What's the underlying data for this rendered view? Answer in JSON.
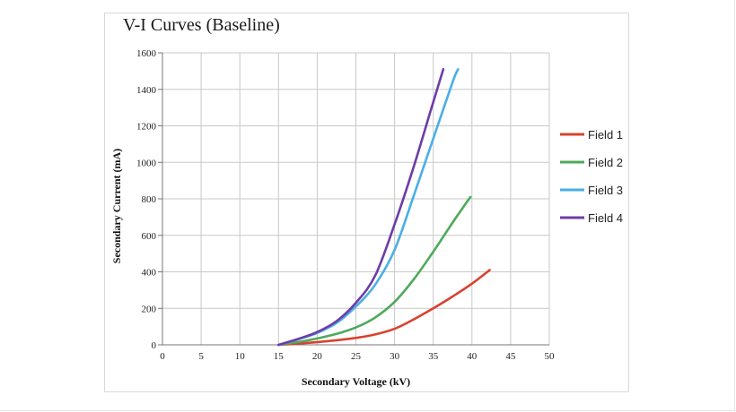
{
  "chart_data": {
    "type": "line",
    "title": "V-I Curves (Baseline)",
    "xlabel": "Secondary Voltage (kV)",
    "ylabel": "Secondary Current (mA)",
    "xlim": [
      0,
      50
    ],
    "ylim": [
      0,
      1600
    ],
    "xticks": [
      0,
      5,
      10,
      15,
      20,
      25,
      30,
      35,
      40,
      45,
      50
    ],
    "yticks": [
      0,
      200,
      400,
      600,
      800,
      1000,
      1200,
      1400,
      1600
    ],
    "grid": true,
    "legend_position": "right",
    "series": [
      {
        "name": "Field 1",
        "color": "#d9422f",
        "x": [
          15,
          17.5,
          20,
          22.5,
          25,
          27.5,
          30,
          32.5,
          35,
          37.5,
          40,
          42.3
        ],
        "y": [
          0,
          7,
          15,
          25,
          38,
          57,
          88,
          140,
          200,
          265,
          335,
          410
        ]
      },
      {
        "name": "Field 2",
        "color": "#4daa5a",
        "x": [
          15,
          17.5,
          20,
          22.5,
          25,
          27.5,
          30,
          32.5,
          35,
          37.5,
          39.8
        ],
        "y": [
          0,
          15,
          35,
          60,
          95,
          150,
          235,
          360,
          510,
          670,
          810
        ]
      },
      {
        "name": "Field 3",
        "color": "#4aaee6",
        "x": [
          15,
          17.5,
          20,
          22.5,
          25,
          27.5,
          30,
          32.5,
          35,
          37.5,
          38.2
        ],
        "y": [
          0,
          30,
          65,
          120,
          210,
          330,
          520,
          820,
          1130,
          1440,
          1510
        ]
      },
      {
        "name": "Field 4",
        "color": "#6d3da6",
        "x": [
          15,
          17.5,
          20,
          22.5,
          25,
          27.5,
          30,
          32.5,
          35,
          36.3
        ],
        "y": [
          0,
          32,
          70,
          130,
          230,
          380,
          660,
          980,
          1330,
          1510
        ]
      }
    ]
  }
}
